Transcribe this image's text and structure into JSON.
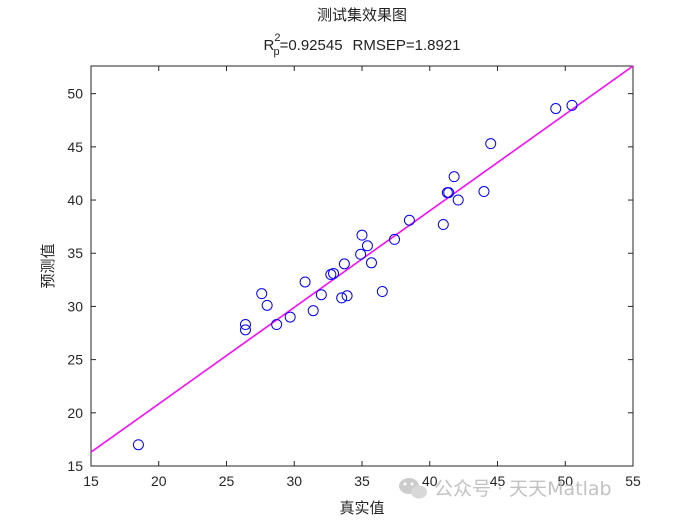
{
  "chart_data": {
    "type": "scatter",
    "title": "测试集效果图",
    "subtitle": {
      "r_symbol": "R",
      "r_subscript": "p",
      "r_superscript": "2",
      "r_value": "=0.92545",
      "rmsep": "RMSEP=1.8921"
    },
    "xlabel": "真实值",
    "ylabel": "预测值",
    "xlim": [
      15,
      55
    ],
    "ylim": [
      15,
      52.6
    ],
    "xticks": [
      15,
      20,
      25,
      30,
      35,
      40,
      45,
      50,
      55
    ],
    "yticks": [
      15,
      20,
      25,
      30,
      35,
      40,
      45,
      50
    ],
    "grid": false,
    "marker_color": "#0000ff",
    "line_color": "#ff00ff",
    "series": [
      {
        "marker": "circle",
        "x": [
          18.5,
          26.4,
          26.4,
          27.6,
          28.0,
          28.7,
          29.7,
          30.8,
          31.4,
          32.0,
          32.7,
          32.9,
          33.5,
          33.7,
          33.9,
          34.9,
          35.0,
          35.4,
          35.7,
          36.5,
          37.4,
          38.5,
          41.0,
          41.3,
          41.4,
          41.8,
          42.1,
          44.0,
          44.5,
          49.3,
          50.5
        ],
        "y": [
          17.0,
          27.8,
          28.3,
          31.2,
          30.1,
          28.3,
          29.0,
          32.3,
          29.6,
          31.1,
          33.0,
          33.1,
          30.8,
          34.0,
          31.0,
          34.9,
          36.7,
          35.7,
          34.1,
          31.4,
          36.3,
          38.1,
          37.7,
          40.7,
          40.7,
          42.2,
          40.0,
          40.8,
          45.3,
          48.6,
          48.9
        ]
      }
    ],
    "fit_line": {
      "x": [
        15,
        55
      ],
      "y": [
        16.3,
        52.6
      ]
    }
  },
  "watermark": {
    "text": "公众号 · 天天Matlab",
    "icon": "wechat-icon"
  }
}
